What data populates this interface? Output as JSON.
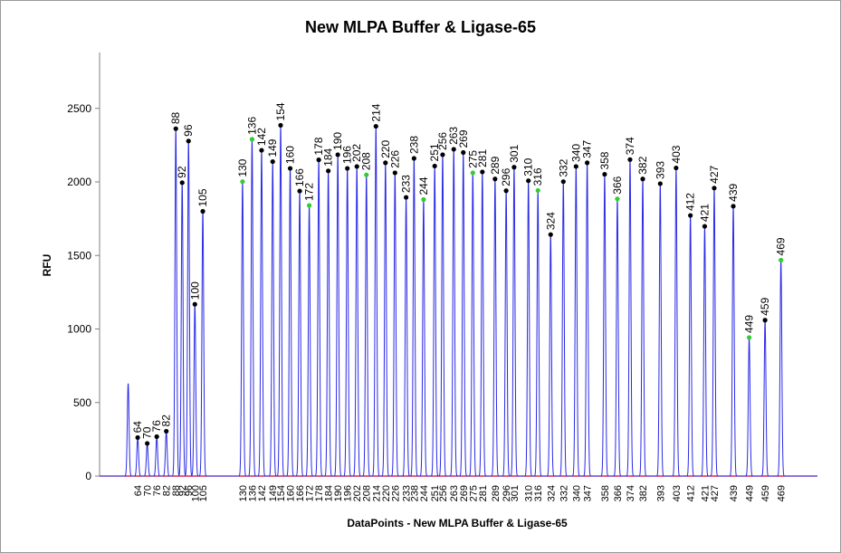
{
  "chart_data": {
    "type": "line",
    "title": "New MLPA Buffer & Ligase-65",
    "xlabel": "DataPoints - New MLPA Buffer & Ligase-65",
    "ylabel": "RFU",
    "ylim": [
      0,
      2880
    ],
    "yticks": [
      0,
      500,
      1000,
      1500,
      2000,
      2500
    ],
    "xlim": [
      40,
      492
    ],
    "grid": false,
    "series": [
      {
        "color": "#2a2ae6",
        "initial_peak": {
          "x": 58,
          "y": 630
        },
        "peaks": [
          {
            "x": 64,
            "y": 262,
            "label": "64",
            "marker": "black"
          },
          {
            "x": 70,
            "y": 222,
            "label": "70",
            "marker": "black"
          },
          {
            "x": 76,
            "y": 268,
            "label": "76",
            "marker": "black"
          },
          {
            "x": 82,
            "y": 305,
            "label": "82",
            "marker": "black"
          },
          {
            "x": 88,
            "y": 2362,
            "label": "88",
            "marker": "black"
          },
          {
            "x": 92,
            "y": 1995,
            "label": "92",
            "marker": "black"
          },
          {
            "x": 96,
            "y": 2278,
            "label": "96",
            "marker": "black"
          },
          {
            "x": 100,
            "y": 1168,
            "label": "100",
            "marker": "black"
          },
          {
            "x": 105,
            "y": 1800,
            "label": "105",
            "marker": "black"
          },
          {
            "x": 130,
            "y": 2002,
            "label": "130",
            "marker": "green"
          },
          {
            "x": 136,
            "y": 2290,
            "label": "136",
            "marker": "green"
          },
          {
            "x": 142,
            "y": 2215,
            "label": "142",
            "marker": "black"
          },
          {
            "x": 149,
            "y": 2138,
            "label": "149",
            "marker": "black"
          },
          {
            "x": 154,
            "y": 2385,
            "label": "154",
            "marker": "black"
          },
          {
            "x": 160,
            "y": 2092,
            "label": "160",
            "marker": "black"
          },
          {
            "x": 166,
            "y": 1938,
            "label": "166",
            "marker": "black"
          },
          {
            "x": 172,
            "y": 1840,
            "label": "172",
            "marker": "green"
          },
          {
            "x": 178,
            "y": 2150,
            "label": "178",
            "marker": "black"
          },
          {
            "x": 184,
            "y": 2075,
            "label": "184",
            "marker": "black"
          },
          {
            "x": 190,
            "y": 2185,
            "label": "190",
            "marker": "black"
          },
          {
            "x": 196,
            "y": 2092,
            "label": "196",
            "marker": "black"
          },
          {
            "x": 202,
            "y": 2105,
            "label": "202",
            "marker": "black"
          },
          {
            "x": 208,
            "y": 2048,
            "label": "208",
            "marker": "green"
          },
          {
            "x": 214,
            "y": 2378,
            "label": "214",
            "marker": "black"
          },
          {
            "x": 220,
            "y": 2130,
            "label": "220",
            "marker": "black"
          },
          {
            "x": 226,
            "y": 2062,
            "label": "226",
            "marker": "black"
          },
          {
            "x": 233,
            "y": 1895,
            "label": "233",
            "marker": "black"
          },
          {
            "x": 238,
            "y": 2160,
            "label": "238",
            "marker": "black"
          },
          {
            "x": 244,
            "y": 1880,
            "label": "244",
            "marker": "green"
          },
          {
            "x": 251,
            "y": 2108,
            "label": "251",
            "marker": "black"
          },
          {
            "x": 256,
            "y": 2185,
            "label": "256",
            "marker": "black"
          },
          {
            "x": 263,
            "y": 2222,
            "label": "263",
            "marker": "black"
          },
          {
            "x": 269,
            "y": 2200,
            "label": "269",
            "marker": "black"
          },
          {
            "x": 275,
            "y": 2062,
            "label": "275",
            "marker": "green"
          },
          {
            "x": 281,
            "y": 2068,
            "label": "281",
            "marker": "black"
          },
          {
            "x": 289,
            "y": 2020,
            "label": "289",
            "marker": "black"
          },
          {
            "x": 296,
            "y": 1940,
            "label": "296",
            "marker": "black"
          },
          {
            "x": 301,
            "y": 2100,
            "label": "301",
            "marker": "black"
          },
          {
            "x": 310,
            "y": 2008,
            "label": "310",
            "marker": "black"
          },
          {
            "x": 316,
            "y": 1942,
            "label": "316",
            "marker": "green"
          },
          {
            "x": 324,
            "y": 1642,
            "label": "324",
            "marker": "black"
          },
          {
            "x": 332,
            "y": 2002,
            "label": "332",
            "marker": "black"
          },
          {
            "x": 340,
            "y": 2105,
            "label": "340",
            "marker": "black"
          },
          {
            "x": 347,
            "y": 2130,
            "label": "347",
            "marker": "black"
          },
          {
            "x": 358,
            "y": 2052,
            "label": "358",
            "marker": "black"
          },
          {
            "x": 366,
            "y": 1885,
            "label": "366",
            "marker": "green"
          },
          {
            "x": 374,
            "y": 2152,
            "label": "374",
            "marker": "black"
          },
          {
            "x": 382,
            "y": 2020,
            "label": "382",
            "marker": "black"
          },
          {
            "x": 393,
            "y": 1988,
            "label": "393",
            "marker": "black"
          },
          {
            "x": 403,
            "y": 2095,
            "label": "403",
            "marker": "black"
          },
          {
            "x": 412,
            "y": 1772,
            "label": "412",
            "marker": "black"
          },
          {
            "x": 421,
            "y": 1698,
            "label": "421",
            "marker": "black"
          },
          {
            "x": 427,
            "y": 1958,
            "label": "427",
            "marker": "black"
          },
          {
            "x": 439,
            "y": 1835,
            "label": "439",
            "marker": "black"
          },
          {
            "x": 449,
            "y": 942,
            "label": "449",
            "marker": "green"
          },
          {
            "x": 459,
            "y": 1060,
            "label": "459",
            "marker": "black"
          },
          {
            "x": 469,
            "y": 1468,
            "label": "469",
            "marker": "green"
          }
        ]
      }
    ],
    "colors": {
      "trace": "#2a2ae6",
      "baseline": "#cc0033",
      "marker_black": "#000000",
      "marker_green": "#33cc33"
    }
  }
}
